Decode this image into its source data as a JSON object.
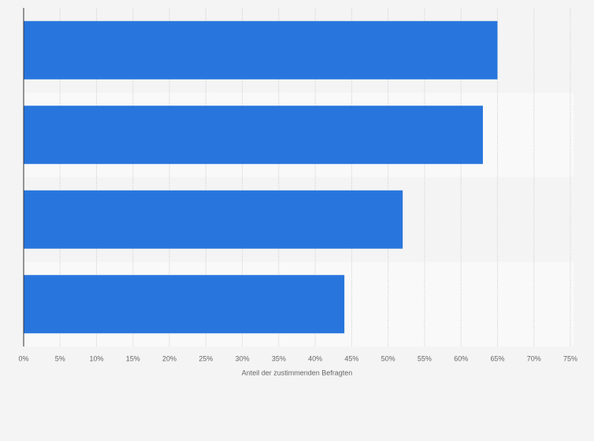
{
  "chart_data": {
    "type": "bar",
    "orientation": "horizontal",
    "categories": [
      null,
      null,
      null,
      null
    ],
    "values": [
      65,
      63,
      52,
      44
    ],
    "color": "#2876dd",
    "xlabel": "Anteil der zustimmenden Befragten",
    "xlim": [
      0,
      75
    ],
    "xticks": [
      {
        "value": 0,
        "label": "0%"
      },
      {
        "value": 5,
        "label": "5%"
      },
      {
        "value": 10,
        "label": "10%"
      },
      {
        "value": 15,
        "label": "15%"
      },
      {
        "value": 20,
        "label": "20%"
      },
      {
        "value": 25,
        "label": "25%"
      },
      {
        "value": 30,
        "label": "30%"
      },
      {
        "value": 35,
        "label": "35%"
      },
      {
        "value": 40,
        "label": "40%"
      },
      {
        "value": 45,
        "label": "45%"
      },
      {
        "value": 50,
        "label": "50%"
      },
      {
        "value": 55,
        "label": "55%"
      },
      {
        "value": 60,
        "label": "60%"
      },
      {
        "value": 65,
        "label": "65%"
      },
      {
        "value": 70,
        "label": "70%"
      },
      {
        "value": 75,
        "label": "75%"
      }
    ],
    "grid": true
  }
}
